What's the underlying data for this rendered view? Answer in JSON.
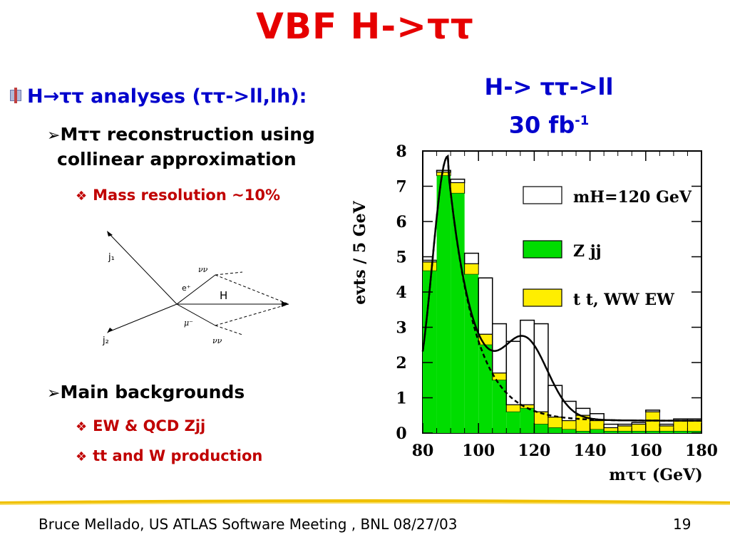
{
  "slide": {
    "title": "VBF H->ττ",
    "bullets": {
      "main": "H→ττ analyses (ττ->ll,lh):",
      "reco_line1": "Mττ reconstruction using",
      "reco_line2": "collinear approximation",
      "resolution": "Mass resolution ~10%",
      "backgrounds": "Main backgrounds",
      "bg1": "EW & QCD Zjj",
      "bg2": "tt and W production"
    },
    "plot_title_line1": "H-> ττ->ll",
    "plot_title_line2": "30 fb",
    "plot_title_sup": "-1",
    "footer_left": "Bruce Mellado, US ATLAS Software Meeting , BNL 08/27/03",
    "footer_right": "19"
  },
  "diagram": {
    "j1": "j₁",
    "j2": "j₂",
    "eplus": "e⁺",
    "muminus": "μ⁻",
    "nunu_top": "νν",
    "nunu_bottom": "νν",
    "H": "H"
  },
  "chart_data": {
    "type": "bar",
    "xlabel": "mττ (GeV)",
    "ylabel": "evts / 5 GeV",
    "xlim": [
      80,
      180
    ],
    "ylim": [
      0,
      8
    ],
    "xticks": [
      "80",
      "100",
      "120",
      "140",
      "160",
      "180"
    ],
    "yticks": [
      "0",
      "1",
      "2",
      "3",
      "4",
      "5",
      "6",
      "7",
      "8"
    ],
    "bin_edges": [
      80,
      85,
      90,
      95,
      100,
      105,
      110,
      115,
      120,
      125,
      130,
      135,
      140,
      145,
      150,
      155,
      160,
      165,
      170,
      175,
      180
    ],
    "series": [
      {
        "name": "Z jj",
        "color": "#00dd00",
        "values": [
          4.6,
          7.3,
          6.8,
          4.5,
          2.5,
          1.5,
          0.6,
          0.7,
          0.25,
          0.15,
          0.1,
          0.05,
          0.1,
          0.05,
          0.05,
          0.05,
          0.05,
          0.05,
          0.05,
          0.05
        ]
      },
      {
        "name": "t t, WW EW",
        "color": "#ffee00",
        "values": [
          0.25,
          0.1,
          0.3,
          0.3,
          0.3,
          0.2,
          0.2,
          0.1,
          0.35,
          0.3,
          0.25,
          0.45,
          0.25,
          0.1,
          0.15,
          0.2,
          0.55,
          0.15,
          0.3,
          0.3
        ]
      },
      {
        "name": "mH=120 GeV",
        "color": "#ffffff",
        "values": [
          0.05,
          0.05,
          0.1,
          0.3,
          1.6,
          1.4,
          1.8,
          2.4,
          2.5,
          0.9,
          0.55,
          0.2,
          0.2,
          0.1,
          0.05,
          0.05,
          0.05,
          0.05,
          0.05,
          0.05
        ]
      }
    ],
    "legend": [
      "mH=120 GeV",
      "Z jj",
      "t t, WW EW"
    ],
    "legend_position": "top-right"
  }
}
